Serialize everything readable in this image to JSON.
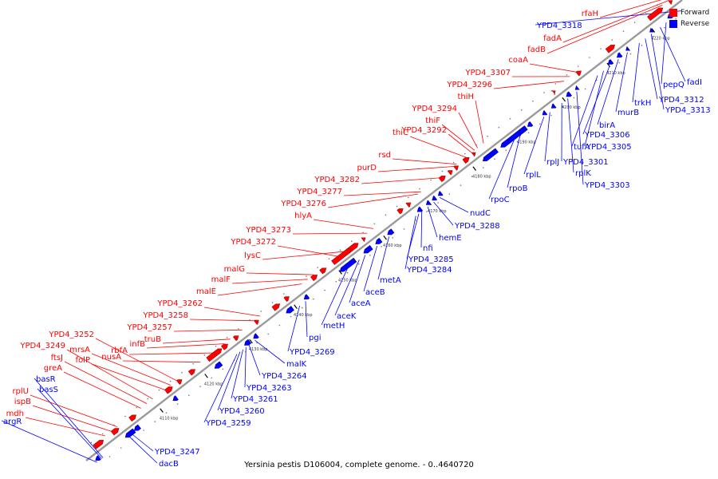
{
  "caption": "Yersinia pestis D106004, complete genome. - 0..4640720",
  "legend": [
    {
      "label": "Forward",
      "color": "#ff0000"
    },
    {
      "label": "Reverse",
      "color": "#0000ff"
    }
  ],
  "colors": {
    "forward": "#ff0000",
    "reverse": "#0000ff",
    "axis": "#999999"
  },
  "ticks": [
    {
      "label": "4110 kbp",
      "pos": 4110
    },
    {
      "label": "4120 kbp",
      "pos": 4120
    },
    {
      "label": "4130 kbp",
      "pos": 4130
    },
    {
      "label": "4140 kbp",
      "pos": 4140
    },
    {
      "label": "4150 kbp",
      "pos": 4150
    },
    {
      "label": "4160 kbp",
      "pos": 4160
    },
    {
      "label": "4170 kbp",
      "pos": 4170
    },
    {
      "label": "4180 kbp",
      "pos": 4180
    },
    {
      "label": "4190 kbp",
      "pos": 4190
    },
    {
      "label": "4200 kbp",
      "pos": 4200
    },
    {
      "label": "4210 kbp",
      "pos": 4210
    },
    {
      "label": "4220 kbp",
      "pos": 4220
    }
  ],
  "forward_labels": [
    "rfaH",
    "fadA",
    "fadB",
    "coaA",
    "YPD4_3307",
    "YPD4_3296",
    "thiH",
    "YPD4_3294",
    "thiF",
    "YPD4_3292",
    "thiC",
    "rsd",
    "purD",
    "YPD4_3282",
    "YPD4_3277",
    "YPD4_3276",
    "hlyA",
    "YPD4_3273",
    "YPD4_3272",
    "lysC",
    "malG",
    "malF",
    "malE",
    "YPD4_3262",
    "YPD4_3258",
    "YPD4_3257",
    "truB",
    "infB",
    "rbfA",
    "nusA",
    "YPD4_3252",
    "mrsA",
    "folP",
    "YPD4_3249",
    "ftsJ",
    "greA",
    "rplU",
    "ispB",
    "mdh"
  ],
  "reverse_labels": [
    "YPD4_3318",
    "pepQ",
    "fadI",
    "trkH",
    "YPD4_3312",
    "YPD4_3313",
    "murB",
    "birA",
    "YPD4_3306",
    "tufA",
    "YPD4_3305",
    "rplJ",
    "YPD4_3301",
    "rplL",
    "rplK",
    "YPD4_3303",
    "rpoB",
    "rpoC",
    "nudC",
    "YPD4_3288",
    "hemE",
    "nfi",
    "YPD4_3285",
    "YPD4_3284",
    "metA",
    "aceB",
    "aceA",
    "aceK",
    "metH",
    "pgi",
    "YPD4_3269",
    "malK",
    "YPD4_3264",
    "YPD4_3263",
    "YPD4_3261",
    "YPD4_3260",
    "YPD4_3259",
    "YPD4_3247",
    "dacB",
    "basR",
    "basS",
    "argR"
  ]
}
